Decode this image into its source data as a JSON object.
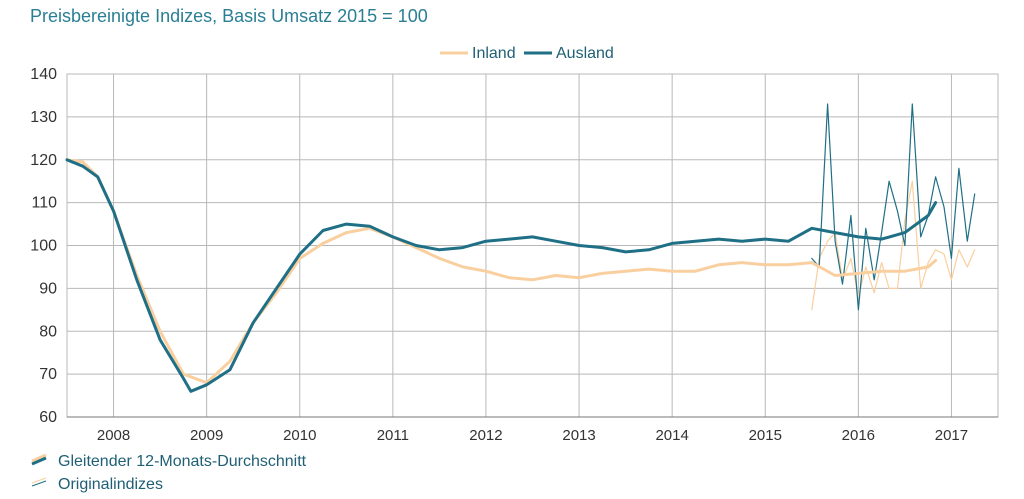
{
  "chart_data": {
    "type": "line",
    "title": "Preisbereinigte Indizes, Basis Umsatz 2015 = 100",
    "ylim": [
      60,
      140
    ],
    "yticks": [
      60,
      70,
      80,
      90,
      100,
      110,
      120,
      130,
      140
    ],
    "xlim": [
      2007.5,
      2017.5
    ],
    "year_labels": [
      "2008",
      "2009",
      "2010",
      "2011",
      "2012",
      "2013",
      "2014",
      "2015",
      "2016",
      "2017"
    ],
    "legend_top": [
      "Inland",
      "Ausland"
    ],
    "legend_bottom": [
      "Gleitender 12-Monats-Durchschnitt",
      "Originalindizes"
    ],
    "colors": {
      "inland": "#f9cf9f",
      "ausland": "#1f6f86",
      "grid": "#b8b8b8",
      "axis": "#777777"
    },
    "series": [
      {
        "name": "Inland (Gleitender 12-Monats-Durchschnitt)",
        "key": "inland_ma",
        "x": [
          2007.5,
          2007.67,
          2007.83,
          2008.0,
          2008.25,
          2008.5,
          2008.75,
          2009.0,
          2009.25,
          2009.5,
          2009.75,
          2010.0,
          2010.25,
          2010.5,
          2010.75,
          2011.0,
          2011.25,
          2011.5,
          2011.75,
          2012.0,
          2012.25,
          2012.5,
          2012.75,
          2013.0,
          2013.25,
          2013.5,
          2013.75,
          2014.0,
          2014.25,
          2014.5,
          2014.75,
          2015.0,
          2015.25,
          2015.5,
          2015.75,
          2016.0,
          2016.25,
          2016.5,
          2016.75,
          2016.83
        ],
        "y": [
          120,
          119.5,
          116,
          108,
          93,
          80,
          70,
          68,
          73,
          82,
          89,
          97,
          100.5,
          103,
          104,
          102,
          99.5,
          97,
          95,
          94,
          92.5,
          92,
          93,
          92.5,
          93.5,
          94,
          94.5,
          94,
          94,
          95.5,
          96,
          95.5,
          95.5,
          96,
          93,
          93.5,
          94,
          94,
          95,
          96.5
        ]
      },
      {
        "name": "Ausland (Gleitender 12-Monats-Durchschnitt)",
        "key": "ausland_ma",
        "x": [
          2007.5,
          2007.67,
          2007.83,
          2008.0,
          2008.25,
          2008.5,
          2008.75,
          2008.83,
          2009.0,
          2009.25,
          2009.5,
          2009.75,
          2010.0,
          2010.25,
          2010.5,
          2010.75,
          2011.0,
          2011.25,
          2011.5,
          2011.75,
          2012.0,
          2012.25,
          2012.5,
          2012.75,
          2013.0,
          2013.25,
          2013.5,
          2013.75,
          2014.0,
          2014.25,
          2014.5,
          2014.75,
          2015.0,
          2015.25,
          2015.5,
          2015.75,
          2016.0,
          2016.25,
          2016.5,
          2016.75,
          2016.83
        ],
        "y": [
          120,
          118.5,
          116,
          108,
          92,
          78,
          69,
          66,
          67.5,
          71,
          82,
          90,
          98,
          103.5,
          105,
          104.5,
          102,
          100,
          99,
          99.5,
          101,
          101.5,
          102,
          101,
          100,
          99.5,
          98.5,
          99,
          100.5,
          101,
          101.5,
          101,
          101.5,
          101,
          104,
          103,
          102,
          101.5,
          103,
          107,
          110
        ]
      },
      {
        "name": "Inland (Originalindizes)",
        "key": "inland_orig",
        "x": [
          2015.5,
          2015.58,
          2015.67,
          2015.75,
          2015.83,
          2015.92,
          2016.0,
          2016.08,
          2016.17,
          2016.25,
          2016.33,
          2016.42,
          2016.5,
          2016.58,
          2016.67,
          2016.75,
          2016.83,
          2016.92,
          2017.0,
          2017.08,
          2017.17,
          2017.25
        ],
        "y": [
          85,
          97,
          101,
          103,
          92,
          97,
          88,
          95,
          89,
          96,
          90,
          90,
          106,
          115,
          90,
          96,
          99,
          98,
          92,
          99,
          95,
          99
        ]
      },
      {
        "name": "Ausland (Originalindizes)",
        "key": "ausland_orig",
        "x": [
          2015.5,
          2015.58,
          2015.67,
          2015.75,
          2015.83,
          2015.92,
          2016.0,
          2016.08,
          2016.17,
          2016.25,
          2016.33,
          2016.42,
          2016.5,
          2016.58,
          2016.67,
          2016.75,
          2016.83,
          2016.92,
          2017.0,
          2017.08,
          2017.17,
          2017.25
        ],
        "y": [
          97,
          95,
          133,
          101,
          91,
          107,
          85,
          104,
          92,
          103,
          115,
          108,
          100,
          133,
          102,
          107,
          116,
          109,
          97,
          118,
          101,
          112
        ]
      }
    ]
  }
}
